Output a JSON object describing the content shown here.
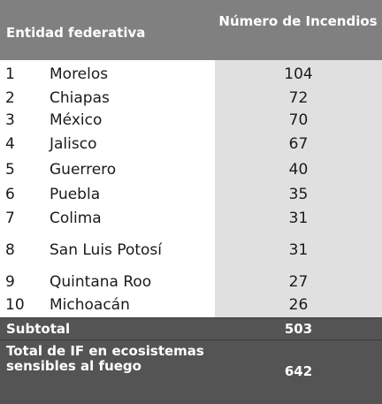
{
  "header": {
    "col1": "Entidad federativa",
    "col2": "Número de Incendios"
  },
  "rows": [
    {
      "rank": "1",
      "name": "Morelos",
      "value": "104"
    },
    {
      "rank": "2",
      "name": "Chiapas",
      "value": "72"
    },
    {
      "rank": "3",
      "name": "México",
      "value": "70"
    },
    {
      "rank": "4",
      "name": "Jalisco",
      "value": "67"
    },
    {
      "rank": "5",
      "name": "Guerrero",
      "value": "40"
    },
    {
      "rank": "6",
      "name": "Puebla",
      "value": "35"
    },
    {
      "rank": "7",
      "name": "Colima",
      "value": "31"
    },
    {
      "rank": "8",
      "name": "San Luis Potosí",
      "value": "31"
    },
    {
      "rank": "9",
      "name": "Quintana Roo",
      "value": "27"
    },
    {
      "rank": "10",
      "name": "Michoacán",
      "value": "26"
    }
  ],
  "subtotal": {
    "label": "Subtotal",
    "value": "503"
  },
  "total": {
    "label": "Total de IF en ecosistemas sensibles al fuego",
    "value": "642"
  },
  "colors": {
    "header_bg": "#808080",
    "summary_bg": "#545454",
    "value_col_bg": "#e0e0e0"
  }
}
